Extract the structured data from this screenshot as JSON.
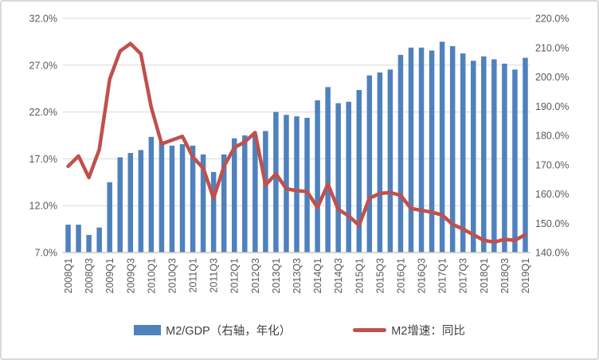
{
  "chart_data": {
    "type": "bar",
    "subtype": "combo-bar-line-dual-axis",
    "categories": [
      "2008Q1",
      "2008Q2",
      "2008Q3",
      "2008Q4",
      "2009Q1",
      "2009Q2",
      "2009Q3",
      "2009Q4",
      "2010Q1",
      "2010Q2",
      "2010Q3",
      "2010Q4",
      "2011Q1",
      "2011Q2",
      "2011Q3",
      "2011Q4",
      "2012Q1",
      "2012Q2",
      "2012Q3",
      "2012Q4",
      "2013Q1",
      "2013Q2",
      "2013Q3",
      "2013Q4",
      "2014Q1",
      "2014Q2",
      "2014Q3",
      "2014Q4",
      "2015Q1",
      "2015Q2",
      "2015Q3",
      "2015Q4",
      "2016Q1",
      "2016Q2",
      "2016Q3",
      "2016Q4",
      "2017Q1",
      "2017Q2",
      "2017Q3",
      "2017Q4",
      "2018Q1",
      "2018Q2",
      "2018Q3",
      "2018Q4",
      "2019Q1"
    ],
    "x_tick_labels": [
      "2008Q1",
      "2008Q3",
      "2009Q1",
      "2009Q3",
      "2010Q1",
      "2010Q3",
      "2011Q1",
      "2011Q3",
      "2012Q1",
      "2012Q3",
      "2013Q1",
      "2013Q3",
      "2014Q1",
      "2014Q3",
      "2015Q1",
      "2015Q3",
      "2016Q1",
      "2016Q3",
      "2017Q1",
      "2017Q3",
      "2018Q1",
      "2018Q3",
      "2019Q1"
    ],
    "series": [
      {
        "name": "M2/GDP（右轴，年化）",
        "type": "bar",
        "axis": "right",
        "color": "#4F81BD",
        "values": [
          149.5,
          149.5,
          146,
          148.5,
          164,
          172.5,
          174,
          175,
          179.5,
          178,
          176.5,
          177,
          176.5,
          173.5,
          167.5,
          173.5,
          179,
          180,
          180,
          181.5,
          188,
          187,
          186.5,
          186,
          192,
          196.5,
          191,
          191.5,
          195.5,
          200.5,
          201.5,
          202.5,
          207.5,
          210,
          210,
          209,
          212,
          210.5,
          208,
          205.5,
          207,
          206,
          204.5,
          202.5,
          206.5
        ]
      },
      {
        "name": "M2增速：同比",
        "type": "line",
        "axis": "left",
        "color": "#C0504D",
        "values": [
          16.2,
          17.3,
          15.0,
          18.0,
          25.5,
          28.5,
          29.3,
          28.2,
          22.5,
          18.6,
          19.0,
          19.4,
          17.2,
          16.0,
          12.8,
          16.2,
          18.2,
          18.8,
          19.8,
          14.2,
          15.4,
          13.8,
          13.6,
          13.5,
          11.8,
          14.3,
          11.6,
          10.9,
          9.9,
          12.8,
          13.3,
          13.4,
          13.1,
          11.7,
          11.5,
          11.3,
          11.0,
          10.0,
          9.5,
          8.9,
          8.3,
          8.1,
          8.4,
          8.3,
          8.9
        ]
      }
    ],
    "left_axis": {
      "min": 7,
      "max": 32,
      "tick_values": [
        7,
        12,
        17,
        22,
        27,
        32
      ],
      "tick_labels": [
        "7.0%",
        "12.0%",
        "17.0%",
        "22.0%",
        "27.0%",
        "32.0%"
      ]
    },
    "right_axis": {
      "min": 140,
      "max": 220,
      "tick_values": [
        140,
        150,
        160,
        170,
        180,
        190,
        200,
        210,
        220
      ],
      "tick_labels": [
        "140.0%",
        "150.0%",
        "160.0%",
        "170.0%",
        "180.0%",
        "190.0%",
        "200.0%",
        "210.0%",
        "220.0%"
      ]
    },
    "grid": true,
    "legend_position": "bottom",
    "title": ""
  },
  "legend": {
    "bar_label": "M2/GDP（右轴，年化）",
    "line_label": "M2增速：同比"
  },
  "colors": {
    "bar": "#4F81BD",
    "line": "#C0504D",
    "gridline": "#D9D9D9",
    "axis_line": "#BFBFBF",
    "axis_text": "#595959",
    "legend_text": "#404040",
    "frame_border": "#D9D9D9",
    "background": "#FFFFFF"
  }
}
